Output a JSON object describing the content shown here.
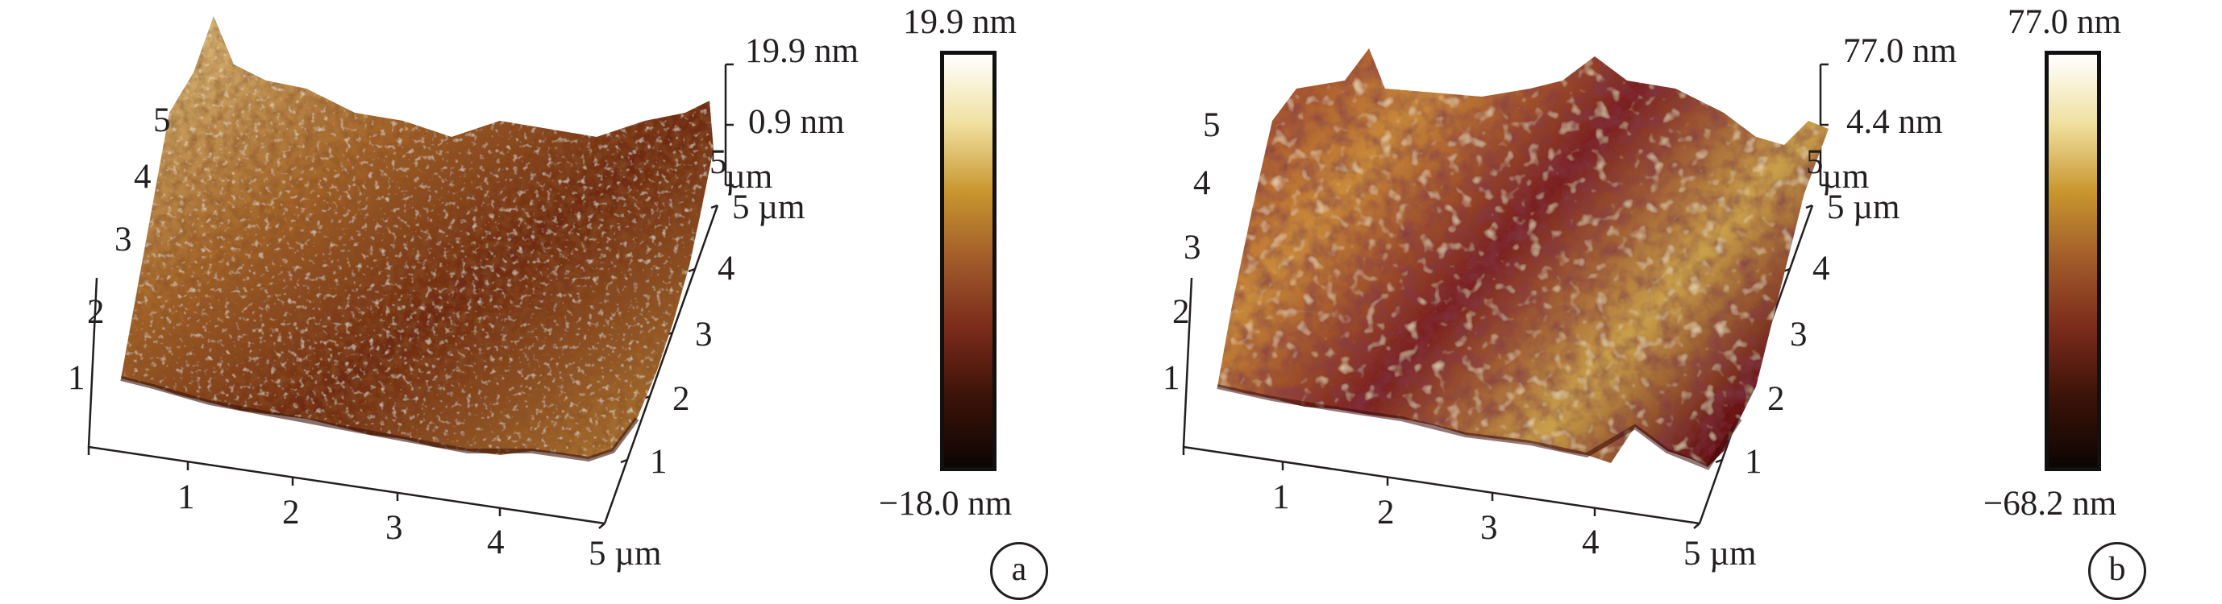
{
  "panels": [
    {
      "letter": "a",
      "colorbar": {
        "max": "19.9 nm",
        "min": "−18.0 nm",
        "stops": [
          "#ffffff",
          "#f0e0a0",
          "#c8962e",
          "#a05a2a",
          "#7a2a1a",
          "#3a1208",
          "#0d0503"
        ]
      },
      "zaxis": {
        "top": "19.9 nm",
        "mid": "0.9 nm",
        "unit_a": "5",
        "unit_b": "µm"
      },
      "xaxis": {
        "ticks": [
          "1",
          "2",
          "3",
          "4"
        ],
        "end": "5 µm"
      },
      "yaxis": {
        "ticks": [
          "1",
          "2",
          "3",
          "4"
        ],
        "end": "5 µm"
      },
      "left_ticks": [
        "1",
        "2",
        "3",
        "4",
        "5"
      ],
      "surface": {
        "light": "#f4e4b0",
        "mid": "#b77c2e",
        "dark": "#5a1a0c"
      }
    },
    {
      "letter": "b",
      "colorbar": {
        "max": "77.0 nm",
        "min": "−68.2 nm",
        "stops": [
          "#ffffff",
          "#f0e0a0",
          "#c8962e",
          "#a05a2a",
          "#7a2a1a",
          "#3a1208",
          "#0d0503"
        ]
      },
      "zaxis": {
        "top": "77.0 nm",
        "mid": "4.4 nm",
        "unit_a": "5",
        "unit_b": "µm"
      },
      "xaxis": {
        "ticks": [
          "1",
          "2",
          "3",
          "4"
        ],
        "end": "5 µm"
      },
      "yaxis": {
        "ticks": [
          "1",
          "2",
          "3",
          "4"
        ],
        "end": "5 µm"
      },
      "left_ticks": [
        "1",
        "2",
        "3",
        "4",
        "5"
      ],
      "surface": {
        "light": "#f2dca0",
        "mid": "#b0462c",
        "dark": "#4a0e12"
      }
    }
  ]
}
